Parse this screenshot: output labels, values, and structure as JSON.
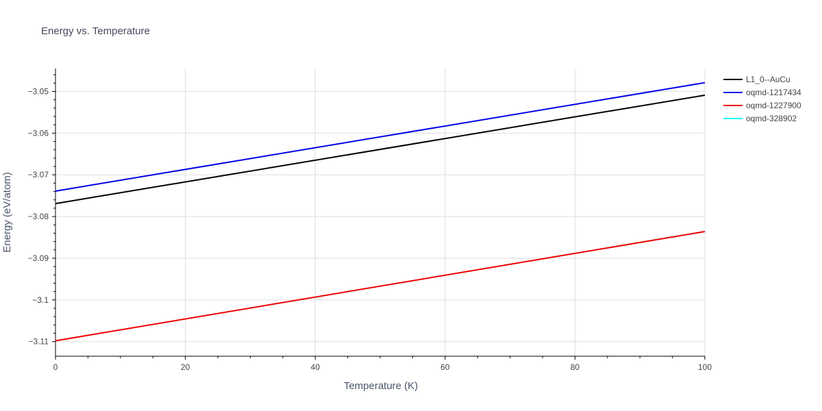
{
  "chart_data": {
    "type": "line",
    "title": "Energy vs. Temperature",
    "xlabel": "Temperature (K)",
    "ylabel": "Energy (eV/atom)",
    "xlim": [
      0,
      100
    ],
    "ylim": [
      -3.1135,
      -3.0445
    ],
    "x_ticks": [
      0,
      20,
      40,
      60,
      80,
      100
    ],
    "x_tick_labels": [
      "0",
      "20",
      "40",
      "60",
      "80",
      "100"
    ],
    "y_ticks": [
      -3.05,
      -3.06,
      -3.07,
      -3.08,
      -3.09,
      -3.1,
      -3.11
    ],
    "y_tick_labels": [
      "−3.05",
      "−3.06",
      "−3.07",
      "−3.08",
      "−3.09",
      "−3.1",
      "−3.11"
    ],
    "grid": true,
    "legend_position": "right",
    "series": [
      {
        "name": "L1_0--AuCu",
        "color": "#000000",
        "x": [
          0,
          100
        ],
        "y": [
          -3.0769,
          -3.0509
        ]
      },
      {
        "name": "oqmd-1217434",
        "color": "#0000ee",
        "x": [
          0,
          100
        ],
        "y": [
          -3.0739,
          -3.0479
        ]
      },
      {
        "name": "oqmd-1227900",
        "color": "#ee0000",
        "x": [
          0,
          100
        ],
        "y": [
          -3.1098,
          -3.0836
        ]
      },
      {
        "name": "oqmd-328902",
        "color": "#00ffff",
        "x": [],
        "y": []
      }
    ]
  }
}
